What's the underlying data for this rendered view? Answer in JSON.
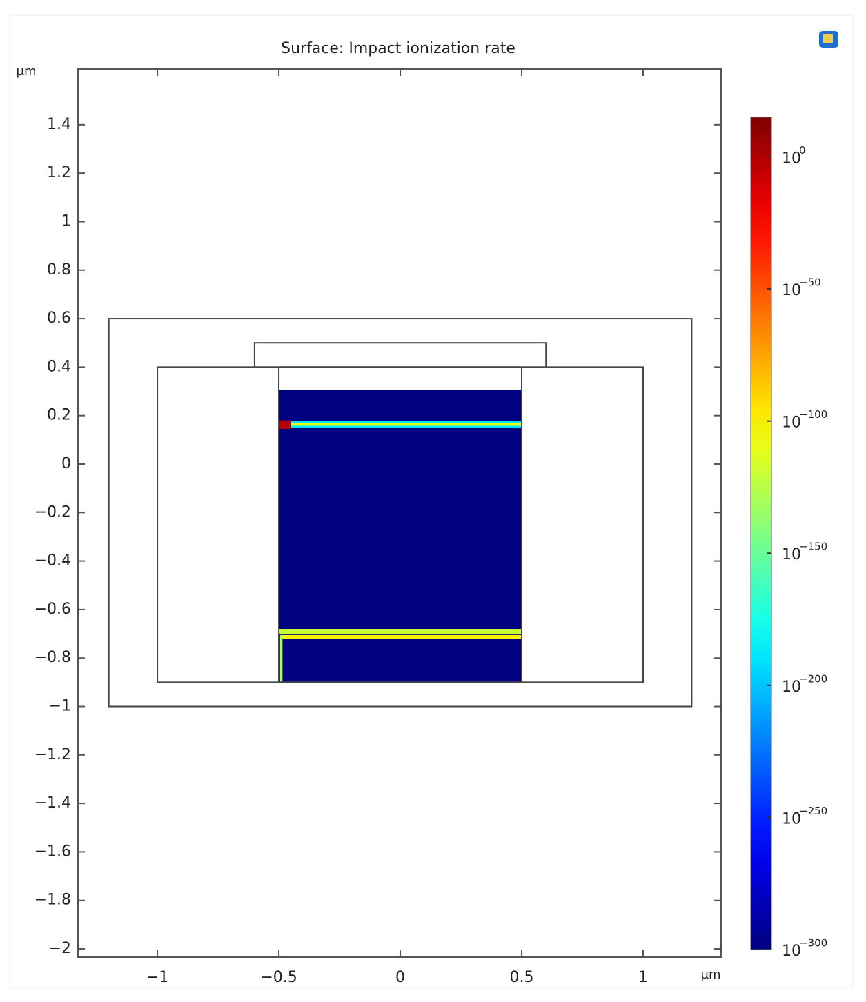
{
  "chart_data": {
    "type": "surface",
    "title": "Surface: Impact ionization rate",
    "y_label": "µm",
    "x_label": "µm",
    "xlim": [
      -1.327,
      1.321
    ],
    "ylim": [
      -2.034,
      1.63
    ],
    "xticks": [
      {
        "value": -1,
        "label": "−1"
      },
      {
        "value": -0.5,
        "label": "−0.5"
      },
      0,
      0.5,
      1
    ],
    "yticks": [
      1.4,
      1.2,
      1,
      0.8,
      0.6,
      0.4,
      0.2,
      0,
      {
        "value": -0.2,
        "label": "−0.2"
      },
      {
        "value": -0.4,
        "label": "−0.4"
      },
      {
        "value": -0.6,
        "label": "−0.6"
      },
      {
        "value": -0.8,
        "label": "−0.8"
      },
      {
        "value": -1,
        "label": "−1"
      },
      {
        "value": -1.2,
        "label": "−1.2"
      },
      {
        "value": -1.4,
        "label": "−1.4"
      },
      {
        "value": -1.6,
        "label": "−1.6"
      },
      {
        "value": -1.8,
        "label": "−1.8"
      },
      {
        "value": -2,
        "label": "−2"
      }
    ],
    "colormap": "jet",
    "color_scale": "log",
    "clim": [
      1e-300,
      1000000000000000.0
    ],
    "cticks": [
      {
        "value": 1,
        "label": "10",
        "sup": "0"
      },
      {
        "value": 1e-50,
        "label": "10",
        "sup": "−50"
      },
      {
        "value": 1e-100,
        "label": "10",
        "sup": "−100"
      },
      {
        "value": 1e-150,
        "label": "10",
        "sup": "−150"
      },
      {
        "value": 1e-200,
        "label": "10",
        "sup": "−200"
      },
      {
        "value": 1e-250,
        "label": "10",
        "sup": "−250"
      },
      {
        "value": 1e-300,
        "label": "10",
        "sup": "−300"
      }
    ],
    "surface": {
      "x": [
        -0.5,
        0.5
      ],
      "y": [
        -0.9,
        0.307
      ],
      "value": 1e-300
    },
    "features": [
      {
        "x": [
          -0.5,
          0.5
        ],
        "y": [
          0.15,
          0.178
        ],
        "value": 1e-190
      },
      {
        "x": [
          -0.5,
          0.5
        ],
        "y": [
          0.158,
          0.17
        ],
        "value": 1e-110
      },
      {
        "x": [
          -0.5,
          -0.45
        ],
        "y": [
          0.145,
          0.18
        ],
        "value": 1
      },
      {
        "x": [
          -0.5,
          0.5
        ],
        "y": [
          -0.7,
          -0.68
        ],
        "value": 1e-120
      },
      {
        "x": [
          -0.49,
          0.5
        ],
        "y": [
          -0.72,
          -0.705
        ],
        "value": 1e-100
      },
      {
        "x": [
          -0.495,
          -0.485
        ],
        "y": [
          -0.9,
          -0.705
        ],
        "value": 1e-130
      }
    ],
    "geometry": [
      {
        "x": [
          -1.2,
          1.2
        ],
        "y": [
          -1,
          0.6
        ]
      },
      {
        "x": [
          -1,
          1
        ],
        "y": [
          -0.9,
          0.4
        ]
      },
      {
        "x": [
          -0.6,
          0.6
        ],
        "y": [
          0.4,
          0.5
        ]
      },
      {
        "x": [
          -0.5,
          0.5
        ],
        "y": [
          -0.9,
          0.4
        ]
      }
    ]
  }
}
